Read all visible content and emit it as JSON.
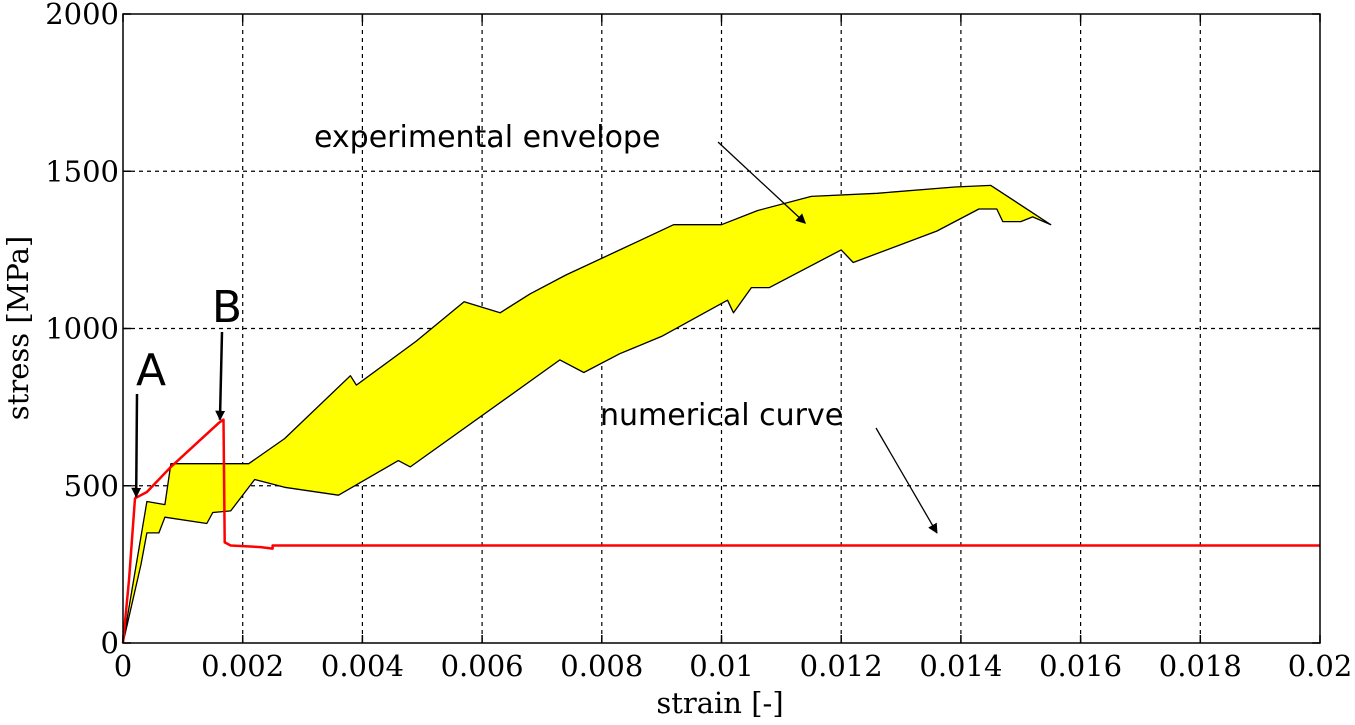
{
  "chart_data": {
    "type": "line",
    "title": "",
    "xlabel": "strain [-]",
    "ylabel": "stress [MPa]",
    "xlim": [
      0,
      0.02
    ],
    "ylim": [
      0,
      2000
    ],
    "grid": true,
    "x_ticks": [
      0,
      0.002,
      0.004,
      0.006,
      0.008,
      0.01,
      0.012,
      0.014,
      0.016,
      0.018,
      0.02
    ],
    "x_tick_labels": [
      "0",
      "0.002",
      "0.004",
      "0.006",
      "0.008",
      "0.01",
      "0.012",
      "0.014",
      "0.016",
      "0.018",
      "0.02"
    ],
    "y_ticks": [
      0,
      500,
      1000,
      1500,
      2000
    ],
    "y_tick_labels": [
      "0",
      "500",
      "1000",
      "1500",
      "2000"
    ],
    "envelope": {
      "fill_color": "#ffff00",
      "upper": [
        [
          0,
          0
        ],
        [
          0.0004,
          450
        ],
        [
          0.0007,
          440
        ],
        [
          0.0008,
          570
        ],
        [
          0.0012,
          570
        ],
        [
          0.0021,
          570
        ],
        [
          0.0027,
          650
        ],
        [
          0.0038,
          850
        ],
        [
          0.0039,
          820
        ],
        [
          0.0049,
          960
        ],
        [
          0.0057,
          1085
        ],
        [
          0.0063,
          1050
        ],
        [
          0.0068,
          1110
        ],
        [
          0.0074,
          1170
        ],
        [
          0.0083,
          1250
        ],
        [
          0.0092,
          1330
        ],
        [
          0.01,
          1330
        ],
        [
          0.0106,
          1375
        ],
        [
          0.0115,
          1420
        ],
        [
          0.0126,
          1430
        ],
        [
          0.0139,
          1450
        ],
        [
          0.0145,
          1455
        ],
        [
          0.0155,
          1330
        ]
      ],
      "lower": [
        [
          0,
          0
        ],
        [
          0.0003,
          250
        ],
        [
          0.0004,
          350
        ],
        [
          0.0006,
          350
        ],
        [
          0.0007,
          400
        ],
        [
          0.0014,
          380
        ],
        [
          0.0015,
          415
        ],
        [
          0.0018,
          420
        ],
        [
          0.0022,
          520
        ],
        [
          0.0027,
          495
        ],
        [
          0.0036,
          470
        ],
        [
          0.0046,
          580
        ],
        [
          0.0048,
          560
        ],
        [
          0.0073,
          900
        ],
        [
          0.0077,
          860
        ],
        [
          0.0083,
          920
        ],
        [
          0.009,
          975
        ],
        [
          0.0101,
          1090
        ],
        [
          0.0102,
          1050
        ],
        [
          0.0105,
          1130
        ],
        [
          0.0108,
          1130
        ],
        [
          0.012,
          1250
        ],
        [
          0.0122,
          1210
        ],
        [
          0.0136,
          1310
        ],
        [
          0.0143,
          1380
        ],
        [
          0.0146,
          1380
        ],
        [
          0.0147,
          1340
        ],
        [
          0.015,
          1340
        ],
        [
          0.0152,
          1355
        ],
        [
          0.0155,
          1330
        ]
      ]
    },
    "series": [
      {
        "label": "numerical curve",
        "color": "#ff0000",
        "x": [
          0,
          0.0001,
          0.0002,
          0.0004,
          0.0008,
          0.0012,
          0.0016,
          0.00168,
          0.0017,
          0.0018,
          0.0023,
          0.0025,
          0.0025,
          0.006,
          0.01,
          0.014,
          0.018,
          0.02
        ],
        "y": [
          0,
          200,
          460,
          480,
          560,
          630,
          700,
          710,
          320,
          310,
          305,
          300,
          310,
          310,
          310,
          310,
          310,
          310
        ]
      }
    ],
    "annotations": [
      {
        "id": "point-a",
        "text": "A",
        "arrow_to": [
          0.00022,
          465
        ]
      },
      {
        "id": "point-b",
        "text": "B",
        "arrow_to": [
          0.00162,
          710
        ]
      },
      {
        "id": "experimental-envelope",
        "text": "experimental envelope",
        "arrow_to": [
          0.0114,
          1335
        ]
      },
      {
        "id": "numerical-curve",
        "text": "numerical curve",
        "arrow_to": [
          0.0136,
          350
        ]
      }
    ]
  }
}
